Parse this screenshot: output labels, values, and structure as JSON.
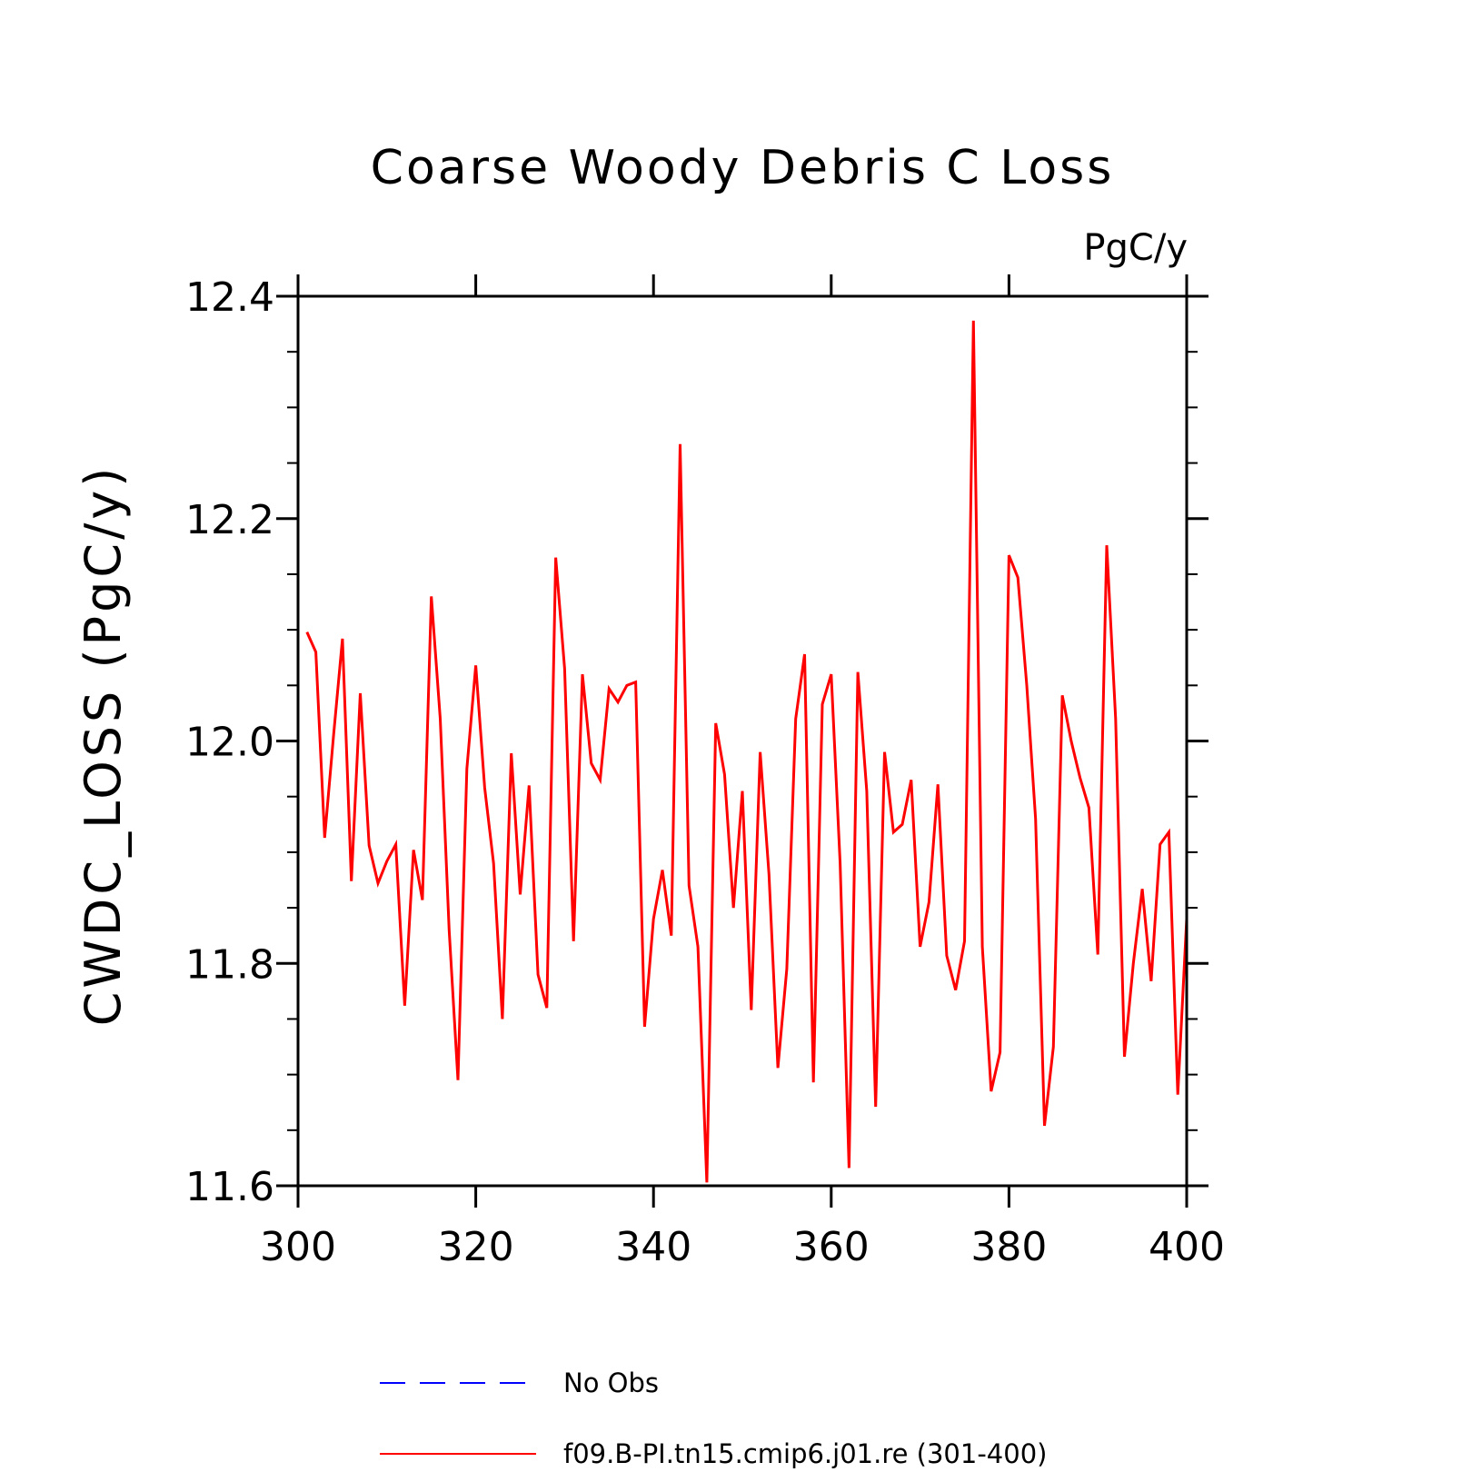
{
  "chart_data": {
    "type": "line",
    "title": "Coarse Woody Debris C Loss",
    "units_label": "PgC/y",
    "ylabel": "CWDC_LOSS  (PgC/y)",
    "xlabel": "",
    "xlim": [
      300,
      400
    ],
    "ylim": [
      11.6,
      12.4
    ],
    "x_ticks": [
      300,
      320,
      340,
      360,
      380,
      400
    ],
    "x_tick_labels": [
      "300",
      "320",
      "340",
      "360",
      "380",
      "400"
    ],
    "y_ticks": [
      11.6,
      11.8,
      12.0,
      12.2,
      12.4
    ],
    "y_tick_labels": [
      "11.6",
      "11.8",
      "12.0",
      "12.2",
      "12.4"
    ],
    "grid": false,
    "legend_position": "bottom",
    "legend": [
      {
        "name": "No Obs",
        "color": "#0000ff",
        "style": "dashed"
      },
      {
        "name": "f09.B-PI.tn15.cmip6.j01.re (301-400)",
        "color": "#ff0000",
        "style": "solid"
      }
    ],
    "series": [
      {
        "name": "f09.B-PI.tn15.cmip6.j01.re (301-400)",
        "color": "#ff0000",
        "x": [
          301,
          302,
          303,
          304,
          305,
          306,
          307,
          308,
          309,
          310,
          311,
          312,
          313,
          314,
          315,
          316,
          317,
          318,
          319,
          320,
          321,
          322,
          323,
          324,
          325,
          326,
          327,
          328,
          329,
          330,
          331,
          332,
          333,
          334,
          335,
          336,
          337,
          338,
          339,
          340,
          341,
          342,
          343,
          344,
          345,
          346,
          347,
          348,
          349,
          350,
          351,
          352,
          353,
          354,
          355,
          356,
          357,
          358,
          359,
          360,
          361,
          362,
          363,
          364,
          365,
          366,
          367,
          368,
          369,
          370,
          371,
          372,
          373,
          374,
          375,
          376,
          377,
          378,
          379,
          380,
          381,
          382,
          383,
          384,
          385,
          386,
          387,
          388,
          389,
          390,
          391,
          392,
          393,
          394,
          395,
          396,
          397,
          398,
          399,
          400
        ],
        "y": [
          12.098,
          12.08,
          11.913,
          12.005,
          12.092,
          11.874,
          12.043,
          11.906,
          11.872,
          11.892,
          11.907,
          11.762,
          11.902,
          11.857,
          12.13,
          12.02,
          11.83,
          11.695,
          11.975,
          12.068,
          11.958,
          11.89,
          11.75,
          11.989,
          11.862,
          11.96,
          11.79,
          11.76,
          12.165,
          12.065,
          11.82,
          12.06,
          11.98,
          11.965,
          12.047,
          12.035,
          12.05,
          12.053,
          11.743,
          11.84,
          11.884,
          11.825,
          12.267,
          11.87,
          11.815,
          11.603,
          12.016,
          11.97,
          11.85,
          11.955,
          11.758,
          11.99,
          11.88,
          11.706,
          11.795,
          12.02,
          12.078,
          11.693,
          12.033,
          12.06,
          11.89,
          11.616,
          12.062,
          11.955,
          11.671,
          11.99,
          11.918,
          11.925,
          11.965,
          11.815,
          11.855,
          11.961,
          11.807,
          11.776,
          11.82,
          12.378,
          11.815,
          11.685,
          11.72,
          12.167,
          12.147,
          12.05,
          11.93,
          11.654,
          11.725,
          12.041,
          12.0,
          11.967,
          11.94,
          11.808,
          12.176,
          12.02,
          11.716,
          11.8,
          11.867,
          11.784,
          11.907,
          11.918,
          11.682,
          11.84
        ]
      }
    ]
  }
}
